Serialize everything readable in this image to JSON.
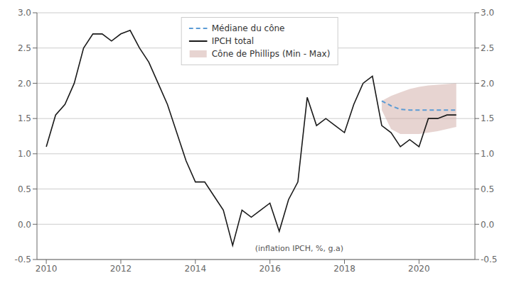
{
  "chart_data": {
    "type": "line",
    "x": [
      2010.0,
      2010.25,
      2010.5,
      2010.75,
      2011.0,
      2011.25,
      2011.5,
      2011.75,
      2012.0,
      2012.25,
      2012.5,
      2012.75,
      2013.0,
      2013.25,
      2013.5,
      2013.75,
      2014.0,
      2014.25,
      2014.5,
      2014.75,
      2015.0,
      2015.25,
      2015.5,
      2015.75,
      2016.0,
      2016.25,
      2016.5,
      2016.75,
      2017.0,
      2017.25,
      2017.5,
      2017.75,
      2018.0,
      2018.25,
      2018.5,
      2018.75,
      2019.0,
      2019.25,
      2019.5,
      2019.75,
      2020.0,
      2020.25,
      2020.5,
      2020.75,
      2021.0
    ],
    "series": [
      {
        "name": "Médiane du cône",
        "type": "line",
        "line_style": "dashed",
        "color": "#5b9bd5",
        "values": [
          null,
          null,
          null,
          null,
          null,
          null,
          null,
          null,
          null,
          null,
          null,
          null,
          null,
          null,
          null,
          null,
          null,
          null,
          null,
          null,
          null,
          null,
          null,
          null,
          null,
          null,
          null,
          null,
          null,
          null,
          null,
          null,
          null,
          null,
          null,
          null,
          1.75,
          1.68,
          1.63,
          1.62,
          1.62,
          1.62,
          1.62,
          1.62,
          1.62
        ]
      },
      {
        "name": "IPCH total",
        "type": "line",
        "line_style": "solid",
        "color": "#1a1a1a",
        "values": [
          1.1,
          1.55,
          1.7,
          2.0,
          2.5,
          2.7,
          2.7,
          2.6,
          2.7,
          2.75,
          2.5,
          2.3,
          2.0,
          1.7,
          1.3,
          0.9,
          0.6,
          0.6,
          0.4,
          0.2,
          -0.3,
          0.2,
          0.1,
          0.2,
          0.3,
          -0.1,
          0.35,
          0.6,
          1.8,
          1.4,
          1.5,
          1.4,
          1.3,
          1.7,
          2.0,
          2.1,
          1.4,
          1.3,
          1.1,
          1.2,
          1.1,
          1.5,
          1.5,
          1.55,
          1.55
        ]
      },
      {
        "name": "Cône de Phillips (Min - Max)",
        "type": "area",
        "color": "#c9a09a",
        "low": [
          null,
          null,
          null,
          null,
          null,
          null,
          null,
          null,
          null,
          null,
          null,
          null,
          null,
          null,
          null,
          null,
          null,
          null,
          null,
          null,
          null,
          null,
          null,
          null,
          null,
          null,
          null,
          null,
          null,
          null,
          null,
          null,
          null,
          null,
          null,
          null,
          1.62,
          1.35,
          1.28,
          1.28,
          1.28,
          1.3,
          1.32,
          1.35,
          1.38
        ],
        "high": [
          null,
          null,
          null,
          null,
          null,
          null,
          null,
          null,
          null,
          null,
          null,
          null,
          null,
          null,
          null,
          null,
          null,
          null,
          null,
          null,
          null,
          null,
          null,
          null,
          null,
          null,
          null,
          null,
          null,
          null,
          null,
          null,
          null,
          null,
          null,
          null,
          1.75,
          1.82,
          1.87,
          1.92,
          1.95,
          1.97,
          1.98,
          1.99,
          2.0
        ]
      }
    ],
    "xlim": [
      2009.75,
      2021.5
    ],
    "xticks": [
      2010,
      2012,
      2014,
      2016,
      2018,
      2020
    ],
    "ylim": [
      -0.5,
      3.0
    ],
    "yticks": [
      -0.5,
      {
        "value": 0.0,
        "label": "0.0"
      },
      0.5,
      {
        "value": 1.0,
        "label": "1.0"
      },
      1.5,
      {
        "value": 2.0,
        "label": "2.0"
      },
      2.5,
      {
        "value": 3.0,
        "label": "3.0"
      }
    ],
    "y2lim": [
      -0.5,
      3.0
    ],
    "y2ticks": [
      -0.5,
      {
        "value": 0.0,
        "label": "0.0"
      },
      0.5,
      {
        "value": 1.0,
        "label": "1.0"
      },
      1.5,
      {
        "value": 2.0,
        "label": "2.0"
      },
      2.5,
      {
        "value": 3.0,
        "label": "3.0"
      }
    ],
    "annotations": [
      {
        "text": "(inflation IPCH, %, g.a)",
        "x": 2015.6,
        "y": -0.28
      }
    ],
    "grid": true,
    "legend": "top"
  }
}
